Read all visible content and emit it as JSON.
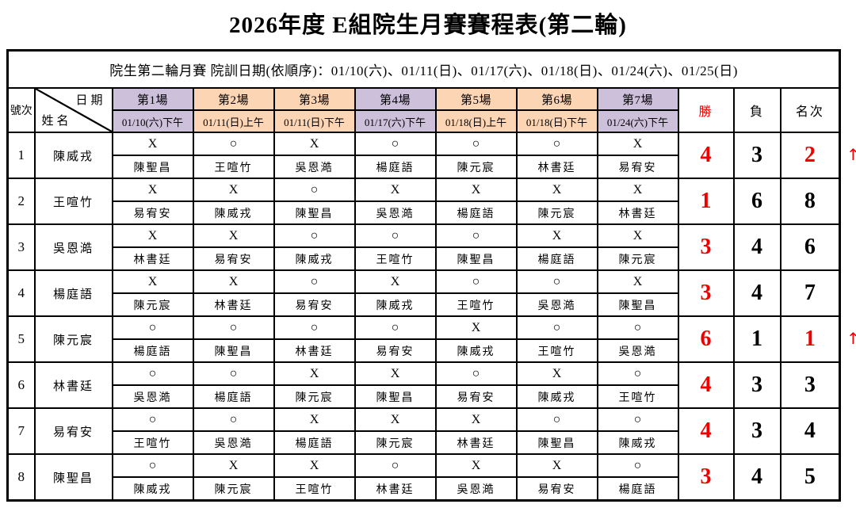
{
  "title": "2026年度 E組院生月賽賽程表(第二輪)",
  "subtitle": "院生第二輪月賽 院訓日期(依順序)：01/10(六)、01/11(日)、01/17(六)、01/18(日)、01/24(六)、01/25(日)",
  "header": {
    "row_no": "號次",
    "date_label": "日期",
    "name_label": "姓名",
    "wins": "勝",
    "losses": "負",
    "rank": "名次"
  },
  "colors": {
    "lavender": "#ccc0da",
    "peach": "#fcd5b4",
    "accent_red": "#ee0000",
    "border": "#000000"
  },
  "arrow_symbol": "↑",
  "matches": [
    {
      "label": "第1場",
      "date": "01/10(六)下午",
      "color": "#ccc0da"
    },
    {
      "label": "第2場",
      "date": "01/11(日)上午",
      "color": "#fcd5b4"
    },
    {
      "label": "第3場",
      "date": "01/11(日)下午",
      "color": "#fcd5b4"
    },
    {
      "label": "第4場",
      "date": "01/17(六)下午",
      "color": "#ccc0da"
    },
    {
      "label": "第5場",
      "date": "01/18(日)上午",
      "color": "#fcd5b4"
    },
    {
      "label": "第6場",
      "date": "01/18(日)下午",
      "color": "#fcd5b4"
    },
    {
      "label": "第7場",
      "date": "01/24(六)下午",
      "color": "#ccc0da"
    }
  ],
  "players": [
    {
      "no": "1",
      "name": "陳威戎",
      "results": [
        "X",
        "○",
        "X",
        "○",
        "○",
        "○",
        "X"
      ],
      "opponents": [
        "陳聖昌",
        "王喧竹",
        "吳恩澔",
        "楊庭語",
        "陳元宸",
        "林書廷",
        "易宥安"
      ],
      "wins": "4",
      "losses": "3",
      "rank": "2",
      "rank_red": true,
      "arrow": true
    },
    {
      "no": "2",
      "name": "王喧竹",
      "results": [
        "X",
        "X",
        "○",
        "X",
        "X",
        "X",
        "X"
      ],
      "opponents": [
        "易宥安",
        "陳威戎",
        "陳聖昌",
        "吳恩澔",
        "楊庭語",
        "陳元宸",
        "林書廷"
      ],
      "wins": "1",
      "losses": "6",
      "rank": "8",
      "rank_red": false,
      "arrow": false
    },
    {
      "no": "3",
      "name": "吳恩澔",
      "results": [
        "X",
        "X",
        "○",
        "○",
        "○",
        "X",
        "X"
      ],
      "opponents": [
        "林書廷",
        "易宥安",
        "陳威戎",
        "王喧竹",
        "陳聖昌",
        "楊庭語",
        "陳元宸"
      ],
      "wins": "3",
      "losses": "4",
      "rank": "6",
      "rank_red": false,
      "arrow": false
    },
    {
      "no": "4",
      "name": "楊庭語",
      "results": [
        "X",
        "X",
        "○",
        "X",
        "○",
        "○",
        "X"
      ],
      "opponents": [
        "陳元宸",
        "林書廷",
        "易宥安",
        "陳威戎",
        "王喧竹",
        "吳恩澔",
        "陳聖昌"
      ],
      "wins": "3",
      "losses": "4",
      "rank": "7",
      "rank_red": false,
      "arrow": false
    },
    {
      "no": "5",
      "name": "陳元宸",
      "results": [
        "○",
        "○",
        "○",
        "○",
        "X",
        "○",
        "○"
      ],
      "opponents": [
        "楊庭語",
        "陳聖昌",
        "林書廷",
        "易宥安",
        "陳威戎",
        "王喧竹",
        "吳恩澔"
      ],
      "wins": "6",
      "losses": "1",
      "rank": "1",
      "rank_red": true,
      "arrow": true
    },
    {
      "no": "6",
      "name": "林書廷",
      "results": [
        "○",
        "○",
        "X",
        "X",
        "○",
        "X",
        "○"
      ],
      "opponents": [
        "吳恩澔",
        "楊庭語",
        "陳元宸",
        "陳聖昌",
        "易宥安",
        "陳威戎",
        "王喧竹"
      ],
      "wins": "4",
      "losses": "3",
      "rank": "3",
      "rank_red": false,
      "arrow": false
    },
    {
      "no": "7",
      "name": "易宥安",
      "results": [
        "○",
        "○",
        "X",
        "X",
        "X",
        "○",
        "○"
      ],
      "opponents": [
        "王喧竹",
        "吳恩澔",
        "楊庭語",
        "陳元宸",
        "林書廷",
        "陳聖昌",
        "陳威戎"
      ],
      "wins": "4",
      "losses": "3",
      "rank": "4",
      "rank_red": false,
      "arrow": false
    },
    {
      "no": "8",
      "name": "陳聖昌",
      "results": [
        "○",
        "X",
        "X",
        "○",
        "X",
        "X",
        "○"
      ],
      "opponents": [
        "陳威戎",
        "陳元宸",
        "王喧竹",
        "林書廷",
        "吳恩澔",
        "易宥安",
        "楊庭語"
      ],
      "wins": "3",
      "losses": "4",
      "rank": "5",
      "rank_red": false,
      "arrow": false
    }
  ]
}
